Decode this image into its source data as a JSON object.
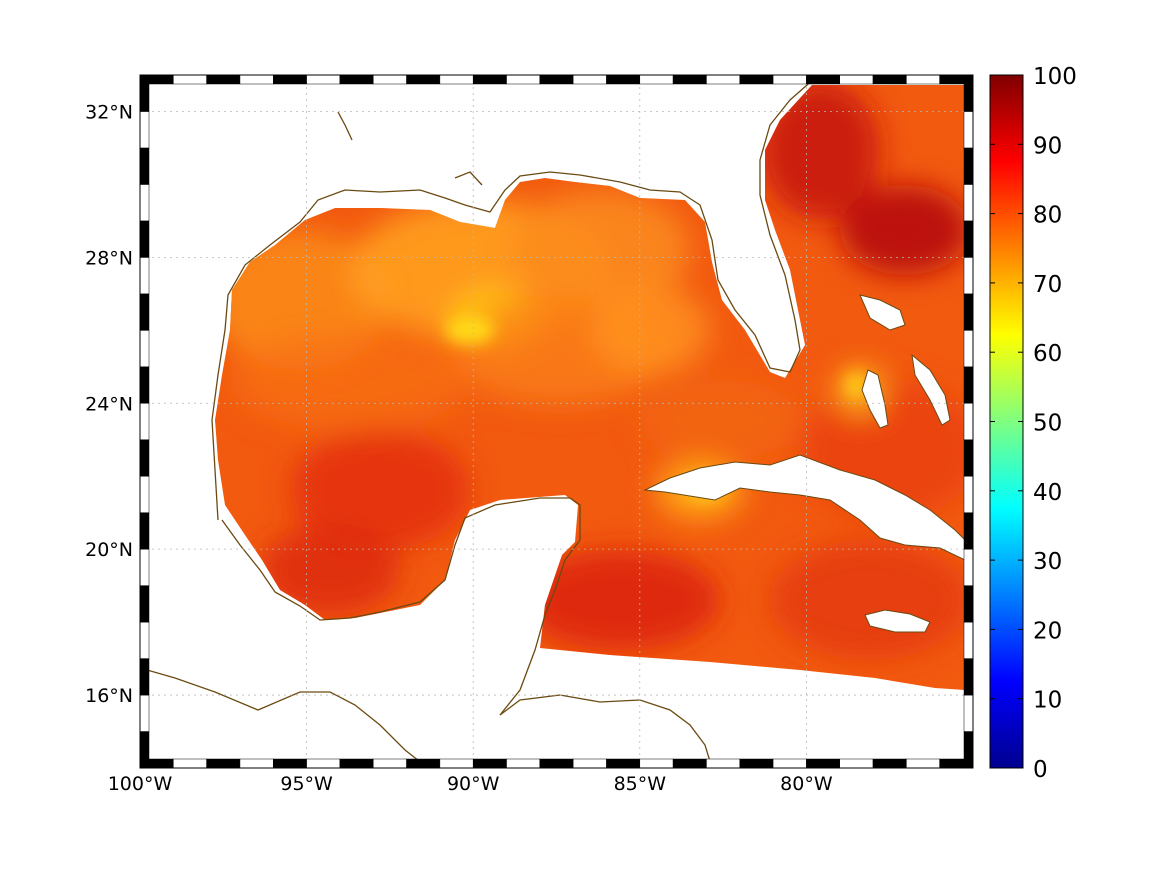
{
  "map": {
    "extent": {
      "lon_min": -100,
      "lon_max": -75,
      "lat_min": 14,
      "lat_max": 33
    },
    "lon_ticks": [
      {
        "value": -100,
        "label": "100°W"
      },
      {
        "value": -95,
        "label": "95°W"
      },
      {
        "value": -90,
        "label": "90°W"
      },
      {
        "value": -85,
        "label": "85°W"
      },
      {
        "value": -80,
        "label": "80°W"
      }
    ],
    "lat_ticks": [
      {
        "value": 16,
        "label": "16°N"
      },
      {
        "value": 20,
        "label": "20°N"
      },
      {
        "value": 24,
        "label": "24°N"
      },
      {
        "value": 28,
        "label": "28°N"
      },
      {
        "value": 32,
        "label": "32°N"
      }
    ],
    "grid": true,
    "coastline_color": "#6b4a12",
    "frame_colors": [
      "#000000",
      "#ffffff"
    ],
    "field_region": "Gulf of Mexico, Florida Straits, western Caribbean and Bahamas waters",
    "field_range_typical": [
      70,
      95
    ]
  },
  "colorbar": {
    "min": 0,
    "max": 100,
    "colormap": "jet",
    "ticks": [
      {
        "value": 0,
        "label": "0"
      },
      {
        "value": 10,
        "label": "10"
      },
      {
        "value": 20,
        "label": "20"
      },
      {
        "value": 30,
        "label": "30"
      },
      {
        "value": 40,
        "label": "40"
      },
      {
        "value": 50,
        "label": "50"
      },
      {
        "value": 60,
        "label": "60"
      },
      {
        "value": 70,
        "label": "70"
      },
      {
        "value": 80,
        "label": "80"
      },
      {
        "value": 90,
        "label": "90"
      },
      {
        "value": 100,
        "label": "100"
      }
    ]
  }
}
